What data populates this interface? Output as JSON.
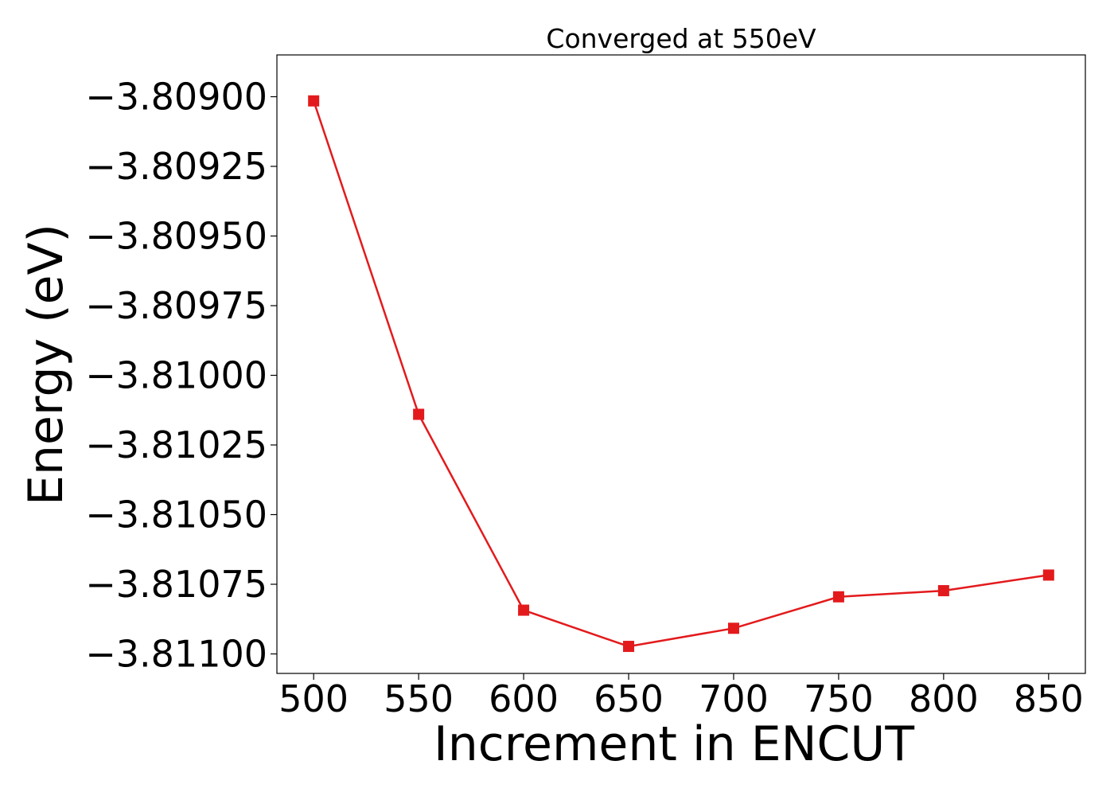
{
  "chart_data": {
    "type": "line",
    "title": "Converged at 550eV",
    "xlabel": "Increment in ENCUT",
    "ylabel": "Energy (eV)",
    "xlim": [
      482.5,
      867.5
    ],
    "ylim": [
      -3.81107,
      -3.80885
    ],
    "xticks": [
      500,
      550,
      600,
      650,
      700,
      750,
      800,
      850
    ],
    "xtick_labels": [
      "500",
      "550",
      "600",
      "650",
      "700",
      "750",
      "800",
      "850"
    ],
    "yticks": [
      -3.809,
      -3.80925,
      -3.8095,
      -3.80975,
      -3.81,
      -3.81025,
      -3.8105,
      -3.81075,
      -3.811
    ],
    "ytick_labels": [
      "−3.80900",
      "−3.80925",
      "−3.80950",
      "−3.80975",
      "−3.81000",
      "−3.81025",
      "−3.81050",
      "−3.81075",
      "−3.81100"
    ],
    "grid": false,
    "series": [
      {
        "color": "#e31a1c",
        "marker": "square",
        "x": [
          500,
          550,
          600,
          650,
          700,
          750,
          800,
          850
        ],
        "y": [
          -3.809015,
          -3.81014,
          -3.810843,
          -3.810973,
          -3.810908,
          -3.810795,
          -3.810773,
          -3.810717
        ]
      }
    ]
  }
}
